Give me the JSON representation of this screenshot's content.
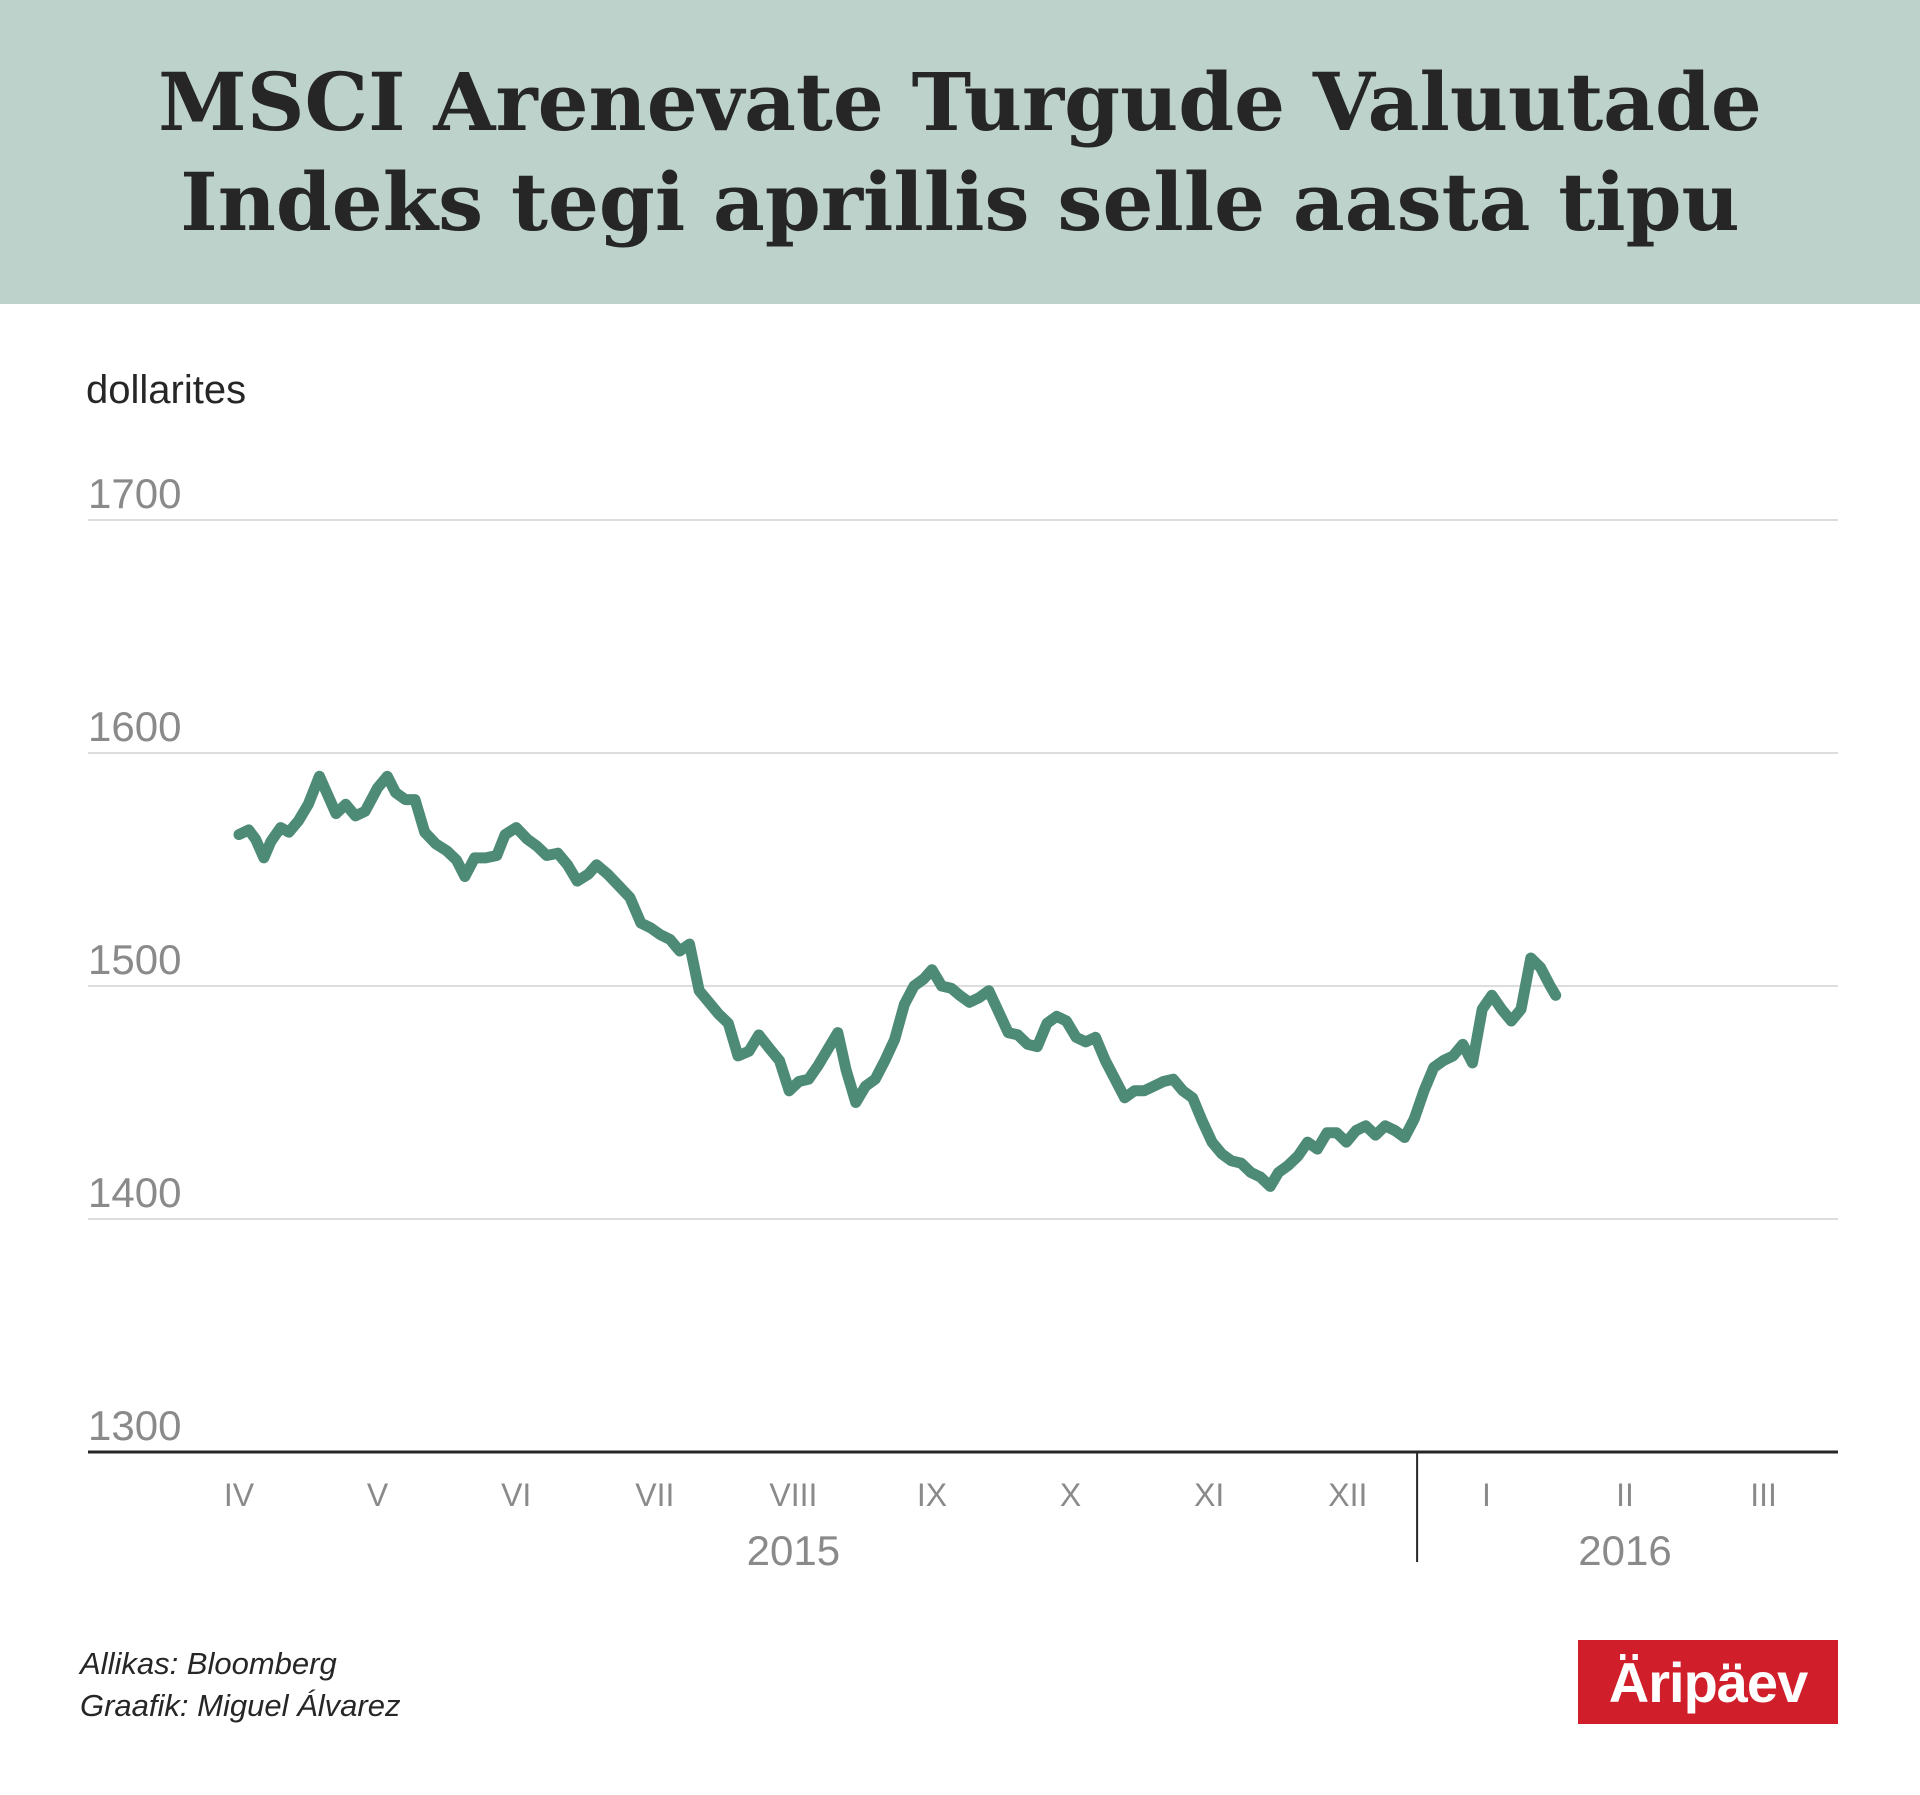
{
  "header": {
    "title_line1": "MSCI Arenevate Turgude Valuutade",
    "title_line2": "Indeks tegi aprillis selle aasta tipu"
  },
  "colors": {
    "header_bg": "#bcd2ca",
    "line": "#4e8b76",
    "grid": "#dddddd",
    "tick_text": "#8a8a8a",
    "logo_bg": "#d01f2a"
  },
  "chart_data": {
    "type": "line",
    "ylabel": "dollarites",
    "ylim": [
      1300,
      1700
    ],
    "yticks": [
      1700,
      1600,
      1500,
      1400,
      1300
    ],
    "grid": true,
    "xlim": [
      0,
      11.5
    ],
    "month_labels": [
      "IV",
      "V",
      "VI",
      "VII",
      "VIII",
      "IX",
      "X",
      "XI",
      "XII",
      "I",
      "II",
      "III"
    ],
    "year_labels": [
      "2015",
      "2016"
    ],
    "series": [
      {
        "color": "#4e8b76",
        "points": [
          [
            0.0,
            1565
          ],
          [
            0.07,
            1567
          ],
          [
            0.12,
            1563
          ],
          [
            0.18,
            1555
          ],
          [
            0.23,
            1562
          ],
          [
            0.3,
            1568
          ],
          [
            0.36,
            1566
          ],
          [
            0.43,
            1571
          ],
          [
            0.5,
            1578
          ],
          [
            0.58,
            1590
          ],
          [
            0.64,
            1582
          ],
          [
            0.7,
            1574
          ],
          [
            0.77,
            1578
          ],
          [
            0.84,
            1573
          ],
          [
            0.91,
            1575
          ],
          [
            1.0,
            1585
          ],
          [
            1.07,
            1590
          ],
          [
            1.13,
            1583
          ],
          [
            1.2,
            1580
          ],
          [
            1.27,
            1580
          ],
          [
            1.34,
            1566
          ],
          [
            1.42,
            1561
          ],
          [
            1.5,
            1558
          ],
          [
            1.57,
            1554
          ],
          [
            1.63,
            1547
          ],
          [
            1.7,
            1555
          ],
          [
            1.78,
            1555
          ],
          [
            1.86,
            1556
          ],
          [
            1.92,
            1565
          ],
          [
            2.0,
            1568
          ],
          [
            2.08,
            1563
          ],
          [
            2.15,
            1560
          ],
          [
            2.22,
            1556
          ],
          [
            2.3,
            1557
          ],
          [
            2.37,
            1552
          ],
          [
            2.44,
            1545
          ],
          [
            2.52,
            1548
          ],
          [
            2.58,
            1552
          ],
          [
            2.66,
            1548
          ],
          [
            2.74,
            1543
          ],
          [
            2.82,
            1538
          ],
          [
            2.9,
            1527
          ],
          [
            2.97,
            1525
          ],
          [
            3.04,
            1522
          ],
          [
            3.11,
            1520
          ],
          [
            3.18,
            1515
          ],
          [
            3.25,
            1518
          ],
          [
            3.32,
            1498
          ],
          [
            3.39,
            1493
          ],
          [
            3.46,
            1488
          ],
          [
            3.53,
            1484
          ],
          [
            3.6,
            1470
          ],
          [
            3.68,
            1472
          ],
          [
            3.75,
            1479
          ],
          [
            3.83,
            1473
          ],
          [
            3.9,
            1468
          ],
          [
            3.97,
            1455
          ],
          [
            4.04,
            1459
          ],
          [
            4.11,
            1460
          ],
          [
            4.18,
            1466
          ],
          [
            4.25,
            1473
          ],
          [
            4.32,
            1480
          ],
          [
            4.38,
            1464
          ],
          [
            4.45,
            1450
          ],
          [
            4.52,
            1457
          ],
          [
            4.59,
            1460
          ],
          [
            4.66,
            1468
          ],
          [
            4.73,
            1477
          ],
          [
            4.8,
            1492
          ],
          [
            4.87,
            1500
          ],
          [
            4.94,
            1503
          ],
          [
            5.0,
            1507
          ],
          [
            5.07,
            1500
          ],
          [
            5.14,
            1499
          ],
          [
            5.2,
            1496
          ],
          [
            5.27,
            1493
          ],
          [
            5.34,
            1495
          ],
          [
            5.41,
            1498
          ],
          [
            5.48,
            1489
          ],
          [
            5.55,
            1480
          ],
          [
            5.62,
            1479
          ],
          [
            5.69,
            1475
          ],
          [
            5.76,
            1474
          ],
          [
            5.83,
            1484
          ],
          [
            5.9,
            1487
          ],
          [
            5.97,
            1485
          ],
          [
            6.04,
            1478
          ],
          [
            6.11,
            1476
          ],
          [
            6.18,
            1478
          ],
          [
            6.25,
            1468
          ],
          [
            6.32,
            1460
          ],
          [
            6.39,
            1452
          ],
          [
            6.46,
            1455
          ],
          [
            6.53,
            1455
          ],
          [
            6.6,
            1457
          ],
          [
            6.67,
            1459
          ],
          [
            6.74,
            1460
          ],
          [
            6.81,
            1455
          ],
          [
            6.88,
            1452
          ],
          [
            6.95,
            1442
          ],
          [
            7.02,
            1433
          ],
          [
            7.09,
            1428
          ],
          [
            7.16,
            1425
          ],
          [
            7.23,
            1424
          ],
          [
            7.3,
            1420
          ],
          [
            7.37,
            1418
          ],
          [
            7.44,
            1414
          ],
          [
            7.5,
            1420
          ],
          [
            7.57,
            1423
          ],
          [
            7.64,
            1427
          ],
          [
            7.71,
            1433
          ],
          [
            7.78,
            1430
          ],
          [
            7.85,
            1437
          ],
          [
            7.92,
            1437
          ],
          [
            7.99,
            1433
          ],
          [
            8.06,
            1438
          ],
          [
            8.13,
            1440
          ],
          [
            8.2,
            1436
          ],
          [
            8.27,
            1440
          ],
          [
            8.34,
            1438
          ],
          [
            8.41,
            1435
          ],
          [
            8.48,
            1443
          ],
          [
            8.55,
            1455
          ],
          [
            8.62,
            1465
          ],
          [
            8.69,
            1468
          ],
          [
            8.76,
            1470
          ],
          [
            8.83,
            1475
          ],
          [
            8.9,
            1467
          ],
          [
            8.97,
            1490
          ],
          [
            9.04,
            1496
          ],
          [
            9.11,
            1490
          ],
          [
            9.18,
            1485
          ],
          [
            9.25,
            1490
          ],
          [
            9.32,
            1512
          ],
          [
            9.39,
            1508
          ],
          [
            9.46,
            1500
          ],
          [
            9.5,
            1496
          ]
        ]
      }
    ]
  },
  "footer": {
    "source_line": "Allikas: Bloomberg",
    "author_line": "Graafik: Miguel Álvarez",
    "logo_text": "Äripäev"
  }
}
